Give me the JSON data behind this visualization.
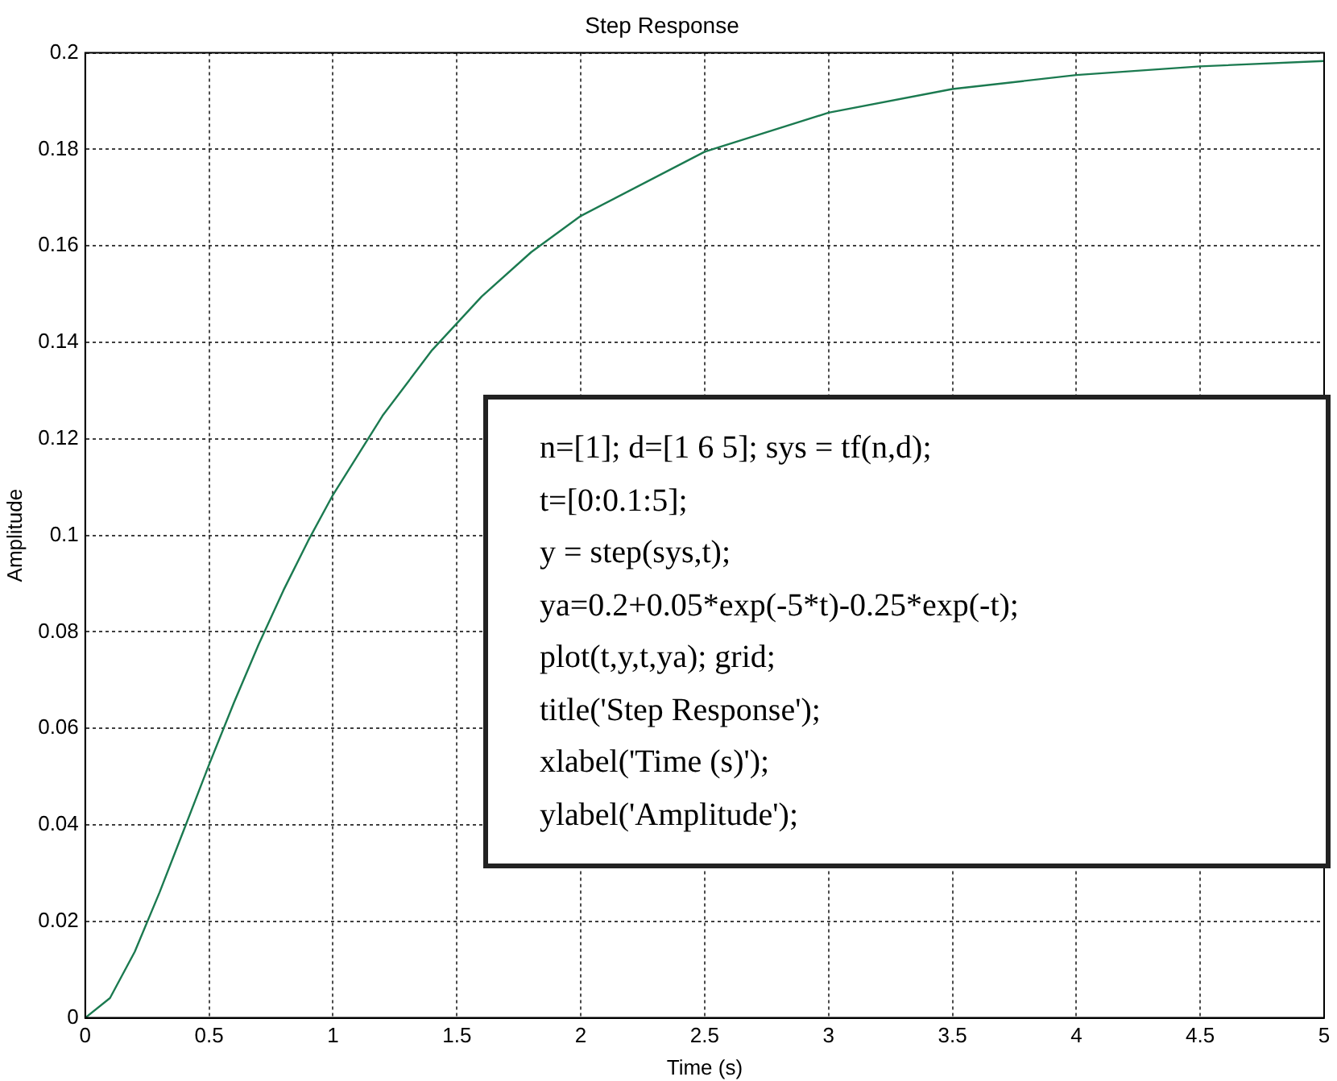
{
  "chart_data": {
    "type": "line",
    "title": "Step Response",
    "xlabel": "Time (s)",
    "ylabel": "Amplitude",
    "x": [
      0,
      0.1,
      0.2,
      0.3,
      0.4,
      0.5,
      0.6,
      0.7,
      0.8,
      0.9,
      1,
      1.2,
      1.4,
      1.6,
      1.8,
      2,
      2.5,
      3,
      3.5,
      4,
      4.5,
      5
    ],
    "series": [
      {
        "color": "#1b7a50",
        "values": [
          0,
          0.0041,
          0.0137,
          0.026,
          0.0392,
          0.0525,
          0.0653,
          0.0774,
          0.0886,
          0.0989,
          0.1084,
          0.1248,
          0.1384,
          0.1495,
          0.1587,
          0.1662,
          0.1795,
          0.1876,
          0.1925,
          0.1954,
          0.1972,
          0.1983
        ]
      }
    ],
    "xlim": [
      0,
      5
    ],
    "xticks": [
      0,
      0.5,
      1,
      1.5,
      2,
      2.5,
      3,
      3.5,
      4,
      4.5,
      5
    ],
    "ylim": [
      0,
      0.2
    ],
    "yticks": [
      0,
      0.02,
      0.04,
      0.06,
      0.08,
      0.1,
      0.12,
      0.14,
      0.16,
      0.18,
      0.2
    ],
    "grid": true,
    "legend": false,
    "marker": "none",
    "line_style": "solid",
    "annotations": [
      "n=[1]; d=[1 6 5]; sys = tf(n,d);",
      "t=[0:0.1:5];",
      "y = step(sys,t);",
      "ya=0.2+0.05*exp(-5*t)-0.25*exp(-t);",
      "plot(t,y,t,ya); grid;",
      "title('Step Response');",
      "xlabel('Time (s)');",
      "ylabel('Amplitude');"
    ]
  }
}
